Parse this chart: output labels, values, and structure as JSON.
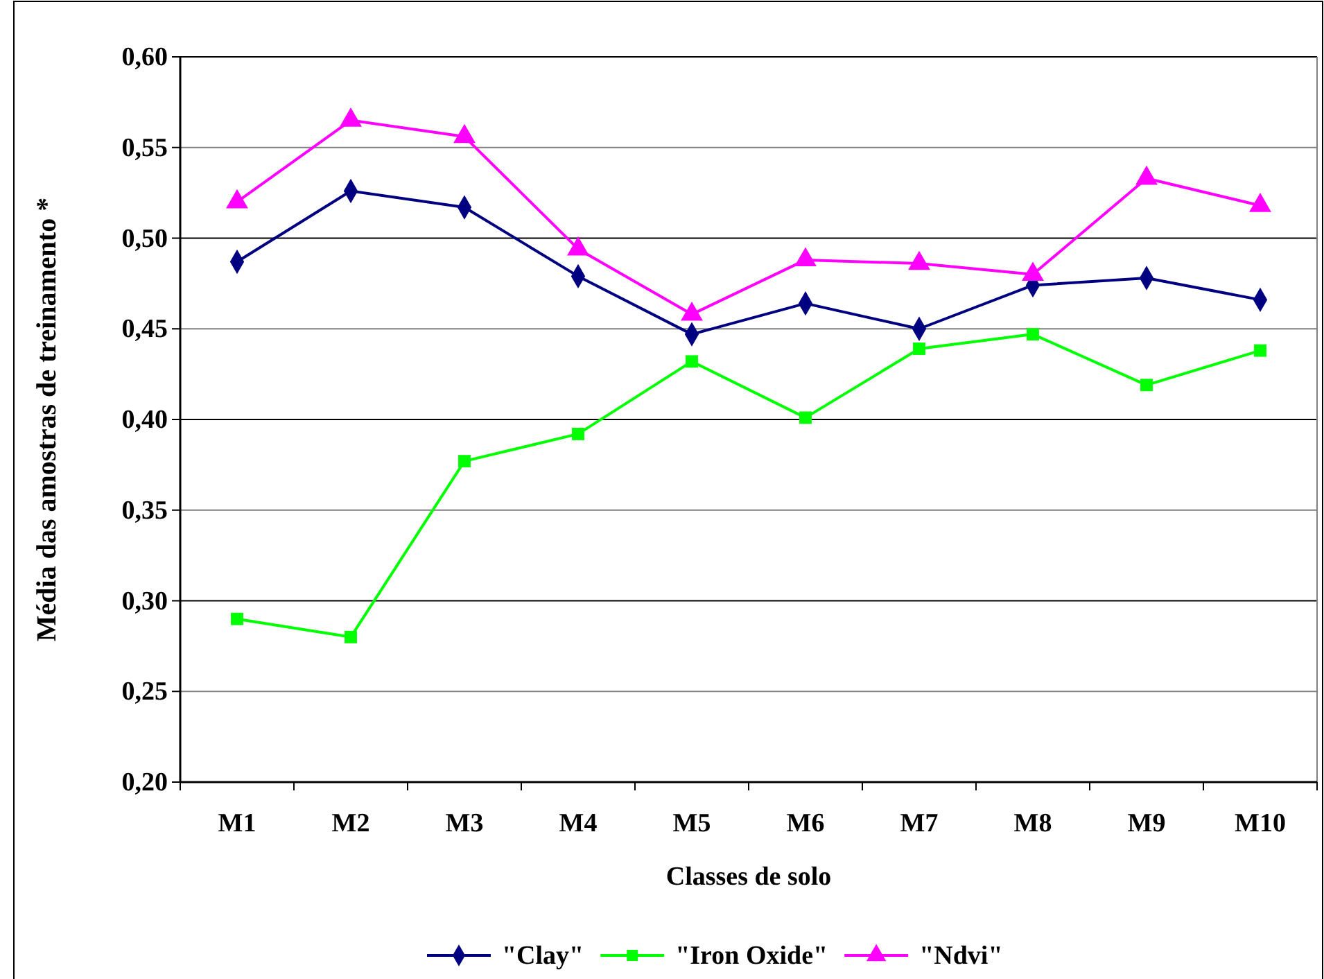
{
  "chart_data": {
    "type": "line",
    "xlabel": "Classes de solo",
    "ylabel": "Média das amostras de treinamento *",
    "categories": [
      "M1",
      "M2",
      "M3",
      "M4",
      "M5",
      "M6",
      "M7",
      "M8",
      "M9",
      "M10"
    ],
    "series": [
      {
        "name": "\"Clay\"",
        "color": "#000080",
        "marker": "diamond",
        "values": [
          0.487,
          0.526,
          0.517,
          0.479,
          0.447,
          0.464,
          0.45,
          0.474,
          0.478,
          0.466
        ]
      },
      {
        "name": "\"Iron Oxide\"",
        "color": "#00ff00",
        "marker": "square",
        "values": [
          0.29,
          0.28,
          0.377,
          0.392,
          0.432,
          0.401,
          0.439,
          0.447,
          0.419,
          0.438
        ]
      },
      {
        "name": "\"Ndvi\"",
        "color": "#ff00ff",
        "marker": "triangle",
        "values": [
          0.52,
          0.565,
          0.556,
          0.494,
          0.458,
          0.488,
          0.486,
          0.48,
          0.533,
          0.518
        ]
      }
    ],
    "ylim": [
      0.2,
      0.6
    ],
    "yticks": [
      {
        "value": 0.2,
        "label": "0,20"
      },
      {
        "value": 0.25,
        "label": "0,25"
      },
      {
        "value": 0.3,
        "label": "0,30"
      },
      {
        "value": 0.35,
        "label": "0,35"
      },
      {
        "value": 0.4,
        "label": "0,40"
      },
      {
        "value": 0.45,
        "label": "0,45"
      },
      {
        "value": 0.5,
        "label": "0,50"
      },
      {
        "value": 0.55,
        "label": "0,55"
      },
      {
        "value": 0.6,
        "label": "0,60"
      }
    ],
    "grid": "y",
    "legend": "bottom",
    "line_style": "solid"
  }
}
